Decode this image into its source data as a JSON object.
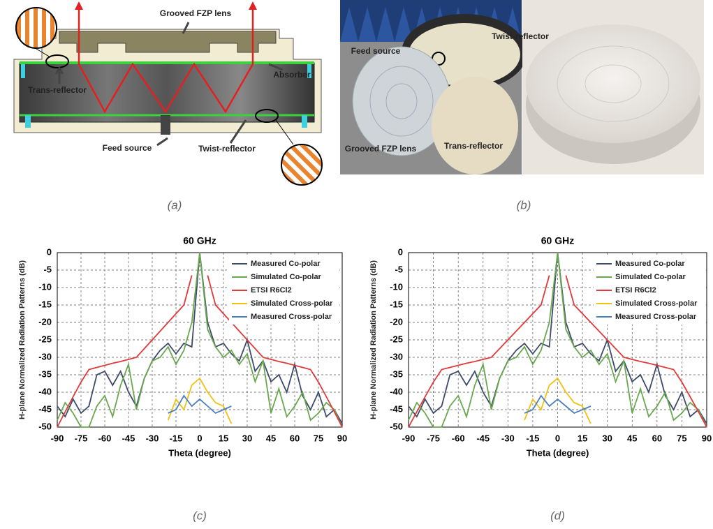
{
  "diagram": {
    "labels": [
      "Grooved FZP lens",
      "Trans-reflector",
      "Absorber",
      "Feed source",
      "Twist-reflector"
    ],
    "caption": "(a)"
  },
  "photo": {
    "labels": [
      "Feed source",
      "Twist-reflector",
      "Grooved FZP lens",
      "Trans-reflector"
    ],
    "caption": "(b)"
  },
  "chart_data": [
    {
      "type": "line",
      "title": "60 GHz",
      "x_label": "Theta (degree)",
      "y_label": "H-plane Normalized Radiation Patterns (dB)",
      "caption": "(c)",
      "x": [
        -90,
        -85,
        -80,
        -75,
        -70,
        -65,
        -60,
        -55,
        -50,
        -45,
        -40,
        -35,
        -30,
        -25,
        -20,
        -15,
        -10,
        -5,
        0,
        5,
        10,
        15,
        20,
        25,
        30,
        35,
        40,
        45,
        50,
        55,
        60,
        65,
        70,
        75,
        80,
        85,
        90
      ],
      "xlim": [
        -90,
        90
      ],
      "xticks": [
        -90,
        -75,
        -60,
        -45,
        -30,
        -15,
        0,
        15,
        30,
        45,
        60,
        75,
        90
      ],
      "ylim": [
        -50,
        0
      ],
      "yticks": [
        -50,
        -45,
        -40,
        -35,
        -30,
        -25,
        -20,
        -15,
        -10,
        -5,
        0
      ],
      "grid": true,
      "legend": "upper right",
      "series": [
        {
          "name": "Measured Co-polar",
          "color": "#3d4b6b",
          "values": [
            -44,
            -47,
            -42,
            -46,
            -44,
            -35,
            -34,
            -38,
            -34,
            -40,
            -44,
            -36,
            -31,
            -28,
            -26,
            -29,
            -26,
            -27,
            0,
            -20,
            -27,
            -26,
            -29,
            -31,
            -25,
            -34,
            -31,
            -37,
            -35,
            -40,
            -32,
            -41,
            -45,
            -40,
            -47,
            -45,
            -49
          ]
        },
        {
          "name": "Simulated Co-polar",
          "color": "#6aa84f",
          "values": [
            -48,
            -43,
            -46,
            -50,
            -50,
            -44,
            -41,
            -47,
            -38,
            -32,
            -45,
            -36,
            -31,
            -30,
            -27,
            -32,
            -28,
            -20,
            0,
            -22,
            -27,
            -30,
            -28,
            -32,
            -29,
            -37,
            -31,
            -46,
            -39,
            -47,
            -44,
            -40,
            -48,
            -46,
            -43,
            -45,
            -50
          ]
        },
        {
          "name": "ETSI R6Cl2",
          "color": "#e03a3a",
          "values": [
            -50,
            -45.6,
            -41.3,
            -37.1,
            -33.5,
            -32.9,
            -32.3,
            -31.7,
            -31.2,
            -30.6,
            -30,
            -27.5,
            -25,
            -22.5,
            -20,
            -17.5,
            -15,
            -6.5,
            null,
            -6.5,
            -15,
            -17.5,
            -20,
            -22.5,
            -25,
            -27.5,
            -30,
            -30.6,
            -31.2,
            -31.7,
            -32.3,
            -32.9,
            -33.5,
            -37.1,
            -41.3,
            -45.6,
            -50
          ]
        },
        {
          "name": "Simulated Cross-polar",
          "color": "#f2c012",
          "values": [
            null,
            null,
            null,
            null,
            null,
            null,
            null,
            null,
            null,
            null,
            null,
            null,
            null,
            null,
            -48,
            -42,
            -45,
            -38,
            -36,
            -40,
            -43,
            -44,
            -49,
            null,
            null,
            null,
            null,
            null,
            null,
            null,
            null,
            null,
            null,
            null,
            null,
            null,
            null
          ]
        },
        {
          "name": "Measured Cross-polar",
          "color": "#4a7fc1",
          "values": [
            null,
            null,
            null,
            null,
            null,
            null,
            null,
            null,
            null,
            null,
            null,
            null,
            null,
            null,
            -46,
            -45,
            -41,
            -44,
            -42,
            -44,
            -46,
            -45,
            -44,
            null,
            null,
            null,
            null,
            null,
            null,
            null,
            null,
            null,
            null,
            null,
            null,
            null,
            null
          ]
        }
      ]
    },
    {
      "type": "line",
      "title": "60 GHz",
      "x_label": "Theta (degree)",
      "y_label": "H-plane Normalized Radiation Patterns (dB)",
      "caption": "(d)",
      "x": [
        -90,
        -85,
        -80,
        -75,
        -70,
        -65,
        -60,
        -55,
        -50,
        -45,
        -40,
        -35,
        -30,
        -25,
        -20,
        -15,
        -10,
        -5,
        0,
        5,
        10,
        15,
        20,
        25,
        30,
        35,
        40,
        45,
        50,
        55,
        60,
        65,
        70,
        75,
        80,
        85,
        90
      ],
      "xlim": [
        -90,
        90
      ],
      "xticks": [
        -90,
        -75,
        -60,
        -45,
        -30,
        -15,
        0,
        15,
        30,
        45,
        60,
        75,
        90
      ],
      "ylim": [
        -50,
        0
      ],
      "yticks": [
        -50,
        -45,
        -40,
        -35,
        -30,
        -25,
        -20,
        -15,
        -10,
        -5,
        0
      ],
      "grid": true,
      "legend": "upper right",
      "series": [
        {
          "name": "Measured Co-polar",
          "color": "#3d4b6b",
          "values": [
            -44,
            -47,
            -42,
            -46,
            -44,
            -35,
            -34,
            -38,
            -34,
            -40,
            -44,
            -36,
            -31,
            -28,
            -26,
            -29,
            -26,
            -27,
            0,
            -20,
            -27,
            -26,
            -29,
            -31,
            -25,
            -34,
            -31,
            -37,
            -35,
            -40,
            -32,
            -41,
            -45,
            -40,
            -47,
            -45,
            -49
          ]
        },
        {
          "name": "Simulated Co-polar",
          "color": "#6aa84f",
          "values": [
            -48,
            -43,
            -46,
            -50,
            -50,
            -44,
            -41,
            -47,
            -38,
            -32,
            -45,
            -36,
            -31,
            -30,
            -27,
            -32,
            -28,
            -20,
            0,
            -22,
            -27,
            -30,
            -28,
            -32,
            -29,
            -37,
            -31,
            -46,
            -39,
            -47,
            -44,
            -40,
            -48,
            -46,
            -43,
            -45,
            -50
          ]
        },
        {
          "name": "ETSI R6Cl2",
          "color": "#e03a3a",
          "values": [
            -50,
            -45.6,
            -41.3,
            -37.1,
            -33.5,
            -32.9,
            -32.3,
            -31.7,
            -31.2,
            -30.6,
            -30,
            -27.5,
            -25,
            -22.5,
            -20,
            -17.5,
            -15,
            -6.5,
            null,
            -6.5,
            -15,
            -17.5,
            -20,
            -22.5,
            -25,
            -27.5,
            -30,
            -30.6,
            -31.2,
            -31.7,
            -32.3,
            -32.9,
            -33.5,
            -37.1,
            -41.3,
            -45.6,
            -50
          ]
        },
        {
          "name": "Simulated Cross-polar",
          "color": "#f2c012",
          "values": [
            null,
            null,
            null,
            null,
            null,
            null,
            null,
            null,
            null,
            null,
            null,
            null,
            null,
            null,
            -48,
            -42,
            -45,
            -38,
            -36,
            -40,
            -43,
            -44,
            -49,
            null,
            null,
            null,
            null,
            null,
            null,
            null,
            null,
            null,
            null,
            null,
            null,
            null,
            null
          ]
        },
        {
          "name": "Measured Cross-polar",
          "color": "#4a7fc1",
          "values": [
            null,
            null,
            null,
            null,
            null,
            null,
            null,
            null,
            null,
            null,
            null,
            null,
            null,
            null,
            -46,
            -45,
            -41,
            -44,
            -42,
            -44,
            -46,
            -45,
            -44,
            null,
            null,
            null,
            null,
            null,
            null,
            null,
            null,
            null,
            null,
            null,
            null,
            null,
            null
          ]
        }
      ]
    }
  ]
}
